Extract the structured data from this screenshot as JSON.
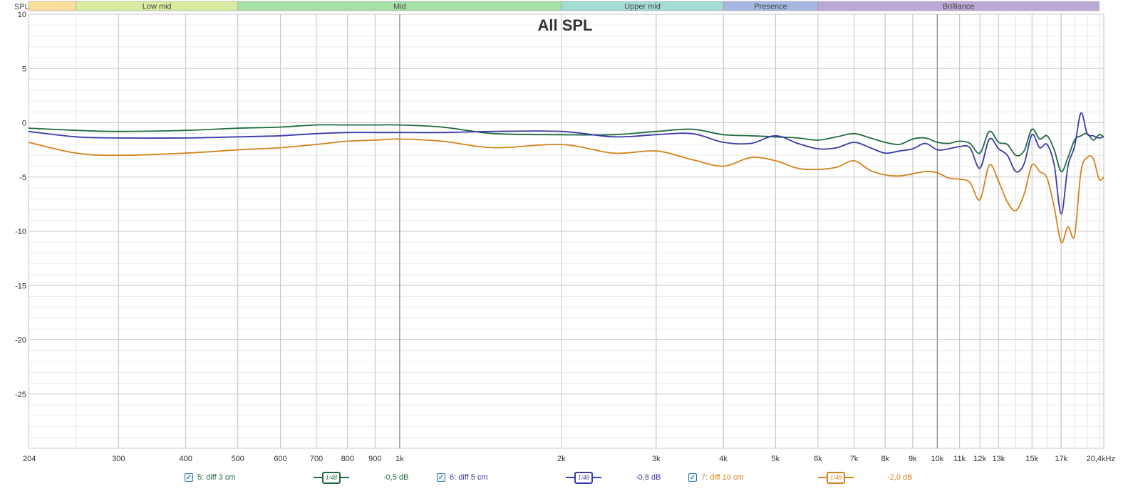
{
  "chart_data": {
    "type": "line",
    "title": "All SPL",
    "ylabel": "SPL",
    "xunit": "kHz",
    "xscale": "log",
    "xlim": [
      204,
      20400
    ],
    "ylim": [
      -30,
      10
    ],
    "yticks": [
      10,
      5,
      0,
      -5,
      -10,
      -15,
      -20,
      -25
    ],
    "xticks": [
      {
        "v": 204,
        "l": "204"
      },
      {
        "v": 300,
        "l": "300"
      },
      {
        "v": 400,
        "l": "400"
      },
      {
        "v": 500,
        "l": "500"
      },
      {
        "v": 600,
        "l": "600"
      },
      {
        "v": 700,
        "l": "700"
      },
      {
        "v": 800,
        "l": "800"
      },
      {
        "v": 900,
        "l": "900"
      },
      {
        "v": 1000,
        "l": "1k"
      },
      {
        "v": 2000,
        "l": "2k"
      },
      {
        "v": 3000,
        "l": "3k"
      },
      {
        "v": 4000,
        "l": "4k"
      },
      {
        "v": 5000,
        "l": "5k"
      },
      {
        "v": 6000,
        "l": "6k"
      },
      {
        "v": 7000,
        "l": "7k"
      },
      {
        "v": 8000,
        "l": "8k"
      },
      {
        "v": 9000,
        "l": "9k"
      },
      {
        "v": 10000,
        "l": "10k"
      },
      {
        "v": 11000,
        "l": "11k"
      },
      {
        "v": 12000,
        "l": "12k"
      },
      {
        "v": 13000,
        "l": "13k"
      },
      {
        "v": 15000,
        "l": "15k"
      },
      {
        "v": 17000,
        "l": "17k"
      },
      {
        "v": 20400,
        "l": "20,4kHz"
      }
    ],
    "bands": [
      {
        "name": "",
        "from": 204,
        "to": 250,
        "color": "#fadf9a"
      },
      {
        "name": "Low mid",
        "from": 250,
        "to": 500,
        "color": "#d8eca0"
      },
      {
        "name": "Mid",
        "from": 500,
        "to": 2000,
        "color": "#a6e0a6"
      },
      {
        "name": "Upper mid",
        "from": 2000,
        "to": 4000,
        "color": "#a3dcd4"
      },
      {
        "name": "Presence",
        "from": 4000,
        "to": 6000,
        "color": "#a6b8e2"
      },
      {
        "name": "Brilliance",
        "from": 6000,
        "to": 20000,
        "color": "#bba8d6"
      }
    ],
    "series": [
      {
        "name": "5: diff 3 cm",
        "color": "#1f6b3f",
        "smoothing": "1/48",
        "offset": "-0,5 dB",
        "x": [
          204,
          250,
          300,
          400,
          500,
          600,
          700,
          800,
          900,
          1000,
          1200,
          1500,
          2000,
          2500,
          3000,
          3500,
          4000,
          4500,
          5000,
          5500,
          6000,
          6500,
          7000,
          7500,
          8000,
          8500,
          9000,
          9500,
          10000,
          10500,
          11000,
          11500,
          12000,
          12500,
          13000,
          13500,
          14000,
          14500,
          15000,
          15500,
          16000,
          16500,
          17000,
          17500,
          18000,
          18500,
          19000,
          19500,
          20000,
          20400
        ],
        "values": [
          -0.5,
          -0.7,
          -0.8,
          -0.7,
          -0.5,
          -0.4,
          -0.2,
          -0.2,
          -0.2,
          -0.2,
          -0.4,
          -1.0,
          -1.1,
          -1.1,
          -0.8,
          -0.6,
          -1.1,
          -1.2,
          -1.3,
          -1.4,
          -1.6,
          -1.3,
          -1.0,
          -1.4,
          -1.8,
          -2.0,
          -1.5,
          -1.4,
          -1.8,
          -1.9,
          -1.7,
          -1.9,
          -2.8,
          -0.8,
          -1.8,
          -2.0,
          -3.0,
          -2.6,
          -0.6,
          -1.5,
          -1.2,
          -2.5,
          -4.5,
          -3.2,
          -1.6,
          -1.2,
          -1.0,
          -1.6,
          -1.1,
          -1.3
        ]
      },
      {
        "name": "6: diff 5 cm",
        "color": "#3a3aa8",
        "smoothing": "1/48",
        "offset": "-0,8 dB",
        "x": [
          204,
          250,
          300,
          400,
          500,
          600,
          700,
          800,
          900,
          1000,
          1200,
          1500,
          2000,
          2500,
          3000,
          3500,
          4000,
          4500,
          5000,
          5500,
          6000,
          6500,
          7000,
          7500,
          8000,
          8500,
          9000,
          9500,
          10000,
          10500,
          11000,
          11500,
          12000,
          12500,
          13000,
          13500,
          14000,
          14500,
          15000,
          15500,
          16000,
          16500,
          17000,
          17500,
          18000,
          18500,
          19000,
          19500,
          20000,
          20400
        ],
        "values": [
          -0.8,
          -1.3,
          -1.4,
          -1.4,
          -1.3,
          -1.2,
          -1.0,
          -0.9,
          -0.9,
          -0.9,
          -0.9,
          -0.8,
          -0.8,
          -1.3,
          -1.1,
          -1.0,
          -1.8,
          -1.9,
          -1.2,
          -1.9,
          -2.4,
          -2.3,
          -1.8,
          -2.3,
          -2.8,
          -2.6,
          -2.4,
          -1.9,
          -2.5,
          -2.4,
          -2.2,
          -2.3,
          -4.2,
          -1.5,
          -2.4,
          -3.0,
          -4.5,
          -3.8,
          -1.1,
          -2.3,
          -2.0,
          -3.9,
          -8.4,
          -4.0,
          -2.2,
          0.9,
          -1.0,
          -1.2,
          -1.4,
          -1.3
        ]
      },
      {
        "name": "7: diff 10 cm",
        "color": "#d4821c",
        "smoothing": "1/48",
        "offset": "-2,0 dB",
        "x": [
          204,
          250,
          300,
          400,
          500,
          600,
          700,
          800,
          900,
          1000,
          1200,
          1500,
          2000,
          2500,
          3000,
          3500,
          4000,
          4500,
          5000,
          5500,
          6000,
          6500,
          7000,
          7500,
          8000,
          8500,
          9000,
          9500,
          10000,
          10500,
          11000,
          11500,
          12000,
          12500,
          13000,
          13500,
          14000,
          14500,
          15000,
          15500,
          16000,
          16500,
          17000,
          17500,
          18000,
          18500,
          19000,
          19500,
          20000,
          20400
        ],
        "values": [
          -1.8,
          -2.8,
          -3.0,
          -2.8,
          -2.5,
          -2.3,
          -2.0,
          -1.7,
          -1.6,
          -1.5,
          -1.7,
          -2.3,
          -2.0,
          -2.8,
          -2.6,
          -3.4,
          -4.0,
          -3.2,
          -3.5,
          -4.2,
          -4.3,
          -4.1,
          -3.5,
          -4.4,
          -4.8,
          -4.9,
          -4.7,
          -4.5,
          -4.6,
          -5.1,
          -5.2,
          -5.5,
          -7.1,
          -3.9,
          -5.4,
          -7.3,
          -8.1,
          -6.6,
          -3.9,
          -4.5,
          -5.1,
          -7.8,
          -11.0,
          -9.6,
          -10.4,
          -4.5,
          -3.2,
          -3.3,
          -5.2,
          -5.0
        ]
      }
    ]
  },
  "legend_checkmark": "✓"
}
